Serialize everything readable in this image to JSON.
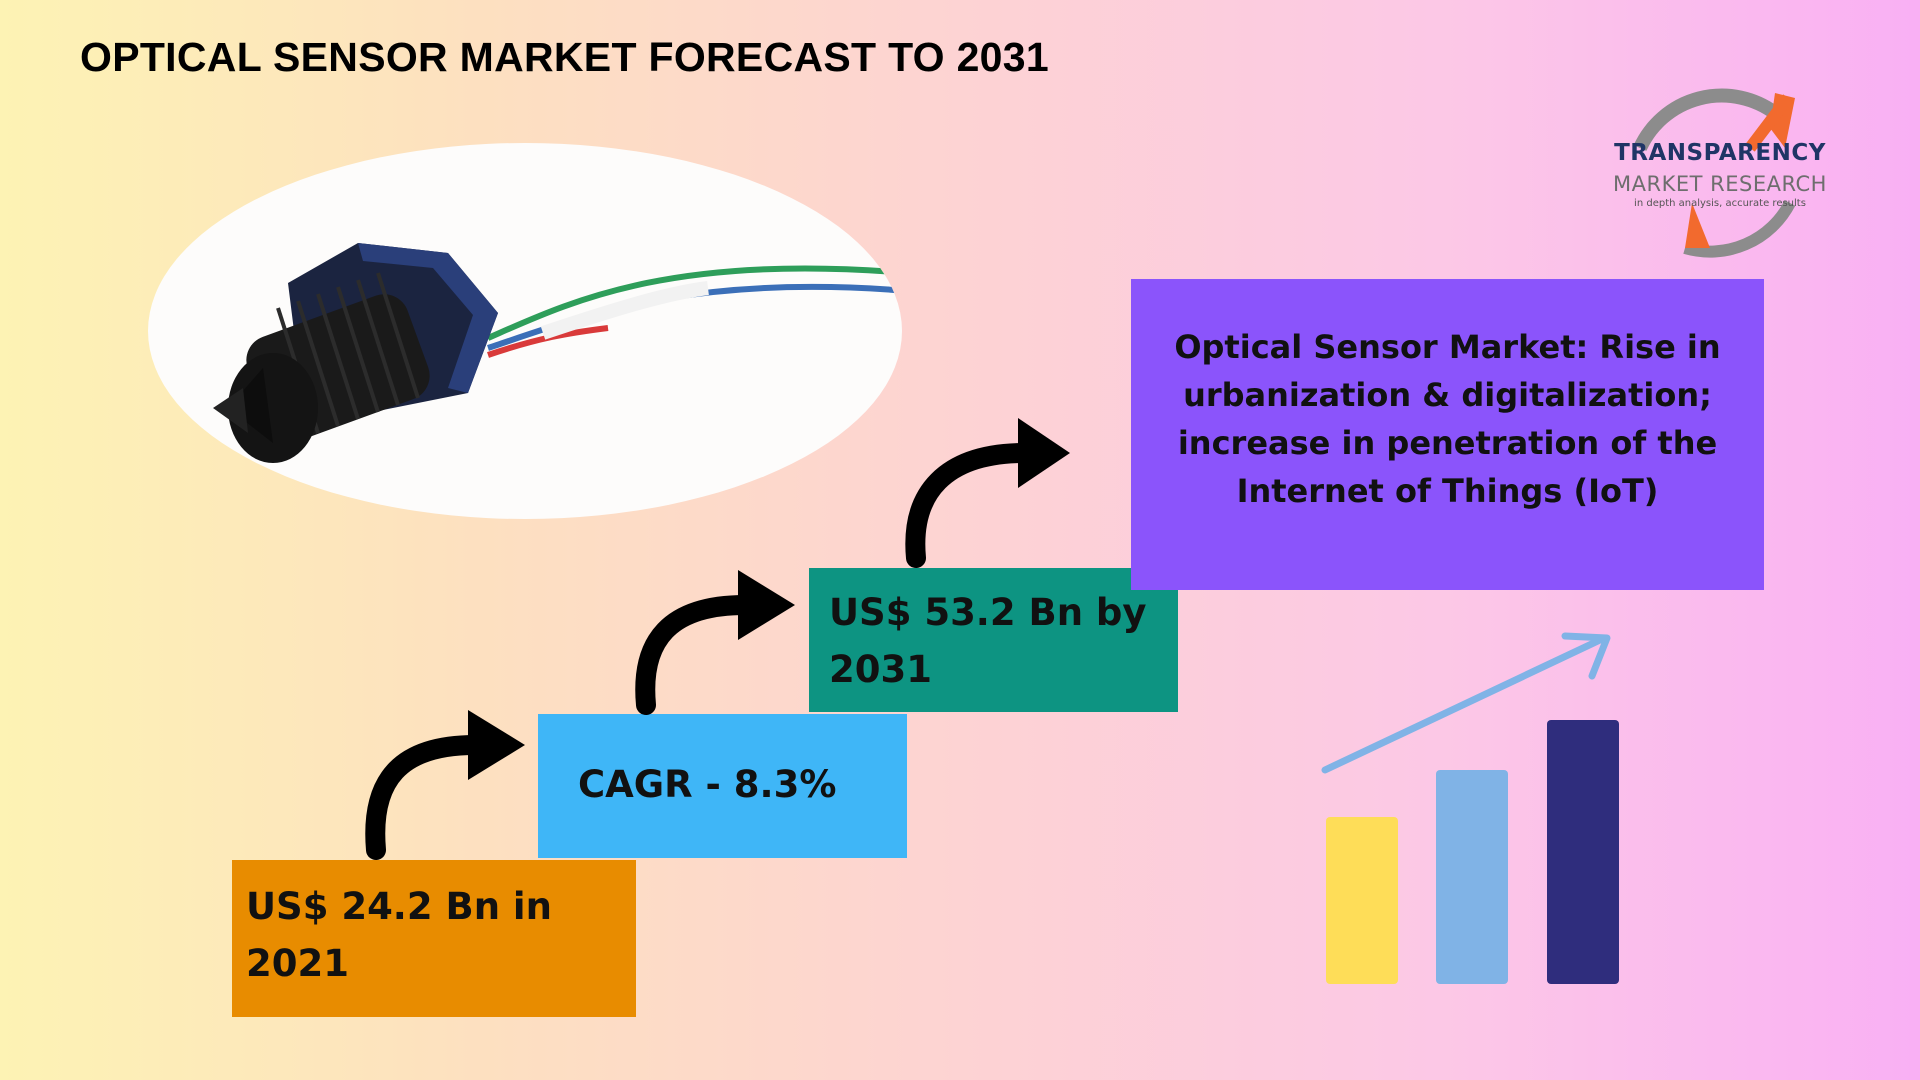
{
  "title": "OPTICAL SENSOR MARKET FORECAST TO 2031",
  "logo": {
    "name": "TRANSPARENCY",
    "subname": "MARKET RESEARCH",
    "tagline": "in depth analysis, accurate results",
    "colors": {
      "navy": "#1f3566",
      "orange": "#f26a2e",
      "gray": "#8c8c8c"
    }
  },
  "steps": [
    {
      "text": "US$ 24.2 Bn in\n2021",
      "color": "#e88c00"
    },
    {
      "text": "CAGR - 8.3%",
      "color": "#3fb6f7"
    },
    {
      "text": "US$ 53.2 Bn by\n2031",
      "color": "#0d9482"
    }
  ],
  "driver": {
    "text": "Optical Sensor Market: Rise in urbanization & digitalization; increase in penetration of the Internet of Things (IoT)",
    "color": "#8b54fb"
  },
  "icons": {
    "photo": "optical-sensor-photo",
    "step_arrows": "curved-arrow-icon",
    "growth": "growth-bar-chart-icon"
  },
  "colors": {
    "background_left": "#fdf3b4",
    "background_right": "#f9b0f4",
    "bar_yellow": "#fedd58",
    "bar_lightblue": "#80b3e6",
    "bar_navy": "#2f2d7d",
    "trend_arrow": "#80b3e6"
  }
}
